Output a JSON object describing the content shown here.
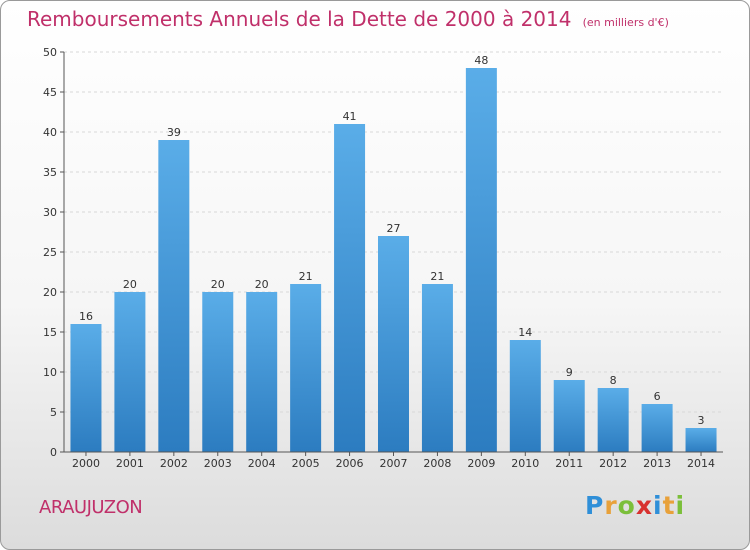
{
  "title": "Remboursements Annuels de la Dette de 2000 à 2014",
  "subtitle": "(en milliers d'€)",
  "commune": "ARAUJUZON",
  "logo": {
    "letters": [
      "P",
      "r",
      "o",
      "x",
      "i",
      "t",
      "i"
    ],
    "colors": [
      "#2f8fd8",
      "#e8a13a",
      "#7bbf3a",
      "#d8312f",
      "#2f8fd8",
      "#e8a13a",
      "#7bbf3a"
    ]
  },
  "colors": {
    "bar_top": "#5aade8",
    "bar_bottom": "#2c7cc0",
    "accent": "#c0306a"
  },
  "chart_data": {
    "type": "bar",
    "categories": [
      "2000",
      "2001",
      "2002",
      "2003",
      "2004",
      "2005",
      "2006",
      "2007",
      "2008",
      "2009",
      "2010",
      "2011",
      "2012",
      "2013",
      "2014"
    ],
    "values": [
      16,
      20,
      39,
      20,
      20,
      21,
      41,
      27,
      21,
      48,
      14,
      9,
      8,
      6,
      3
    ],
    "ylim": [
      0,
      50
    ],
    "yticks": [
      0,
      5,
      10,
      15,
      20,
      25,
      30,
      35,
      40,
      45,
      50
    ],
    "grid": true
  }
}
